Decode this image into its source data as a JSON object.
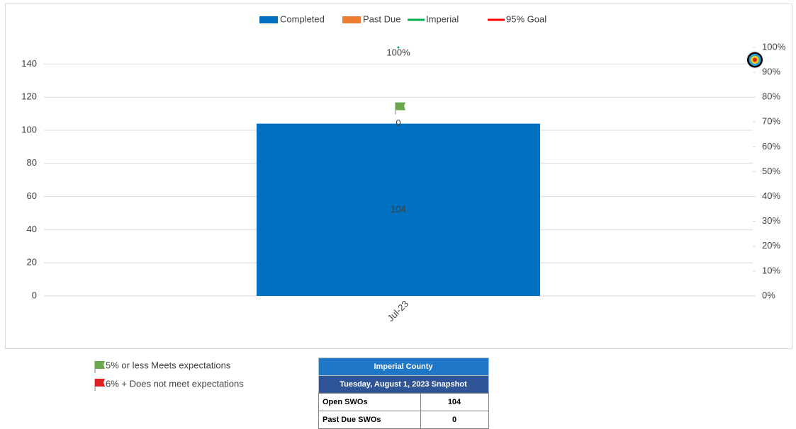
{
  "chart_data": {
    "type": "bar",
    "stacked": true,
    "categories": [
      "Jul-23"
    ],
    "series": [
      {
        "name": "Completed",
        "color": "#0070c0",
        "values": [
          104
        ]
      },
      {
        "name": "Past Due",
        "color": "#ed7d31",
        "values": [
          0
        ]
      },
      {
        "name": "Imperial",
        "color": "#00b050",
        "axis": "y2",
        "type": "line",
        "values": [
          100
        ],
        "value_labels": [
          "100%"
        ]
      },
      {
        "name": "95% Goal",
        "color": "#ff0000",
        "axis": "y2",
        "type": "line",
        "values": [
          95
        ]
      }
    ],
    "ylim": [
      0,
      150
    ],
    "yticks": [
      0,
      20,
      40,
      60,
      80,
      100,
      120,
      140
    ],
    "y2lim": [
      0,
      100
    ],
    "y2ticks": [
      {
        "value": 0,
        "label": "0%"
      },
      {
        "value": 10,
        "label": "10%"
      },
      {
        "value": 20,
        "label": "20%"
      },
      {
        "value": 30,
        "label": "30%"
      },
      {
        "value": 40,
        "label": "40%"
      },
      {
        "value": 50,
        "label": "50%"
      },
      {
        "value": 60,
        "label": "60%"
      },
      {
        "value": 70,
        "label": "70%"
      },
      {
        "value": 80,
        "label": "80%"
      },
      {
        "value": 90,
        "label": "90%"
      },
      {
        "value": 100,
        "label": "100%"
      }
    ],
    "grid": true,
    "legend": "top"
  },
  "notes": [
    "5% or less Meets expectations",
    "6% +  Does not meet expectations"
  ],
  "table": {
    "title": "Imperial County",
    "subtitle": "Tuesday, August 1, 2023 Snapshot",
    "rows": [
      [
        "Open SWOs",
        "104"
      ],
      [
        "Past Due SWOs",
        "0"
      ]
    ]
  }
}
